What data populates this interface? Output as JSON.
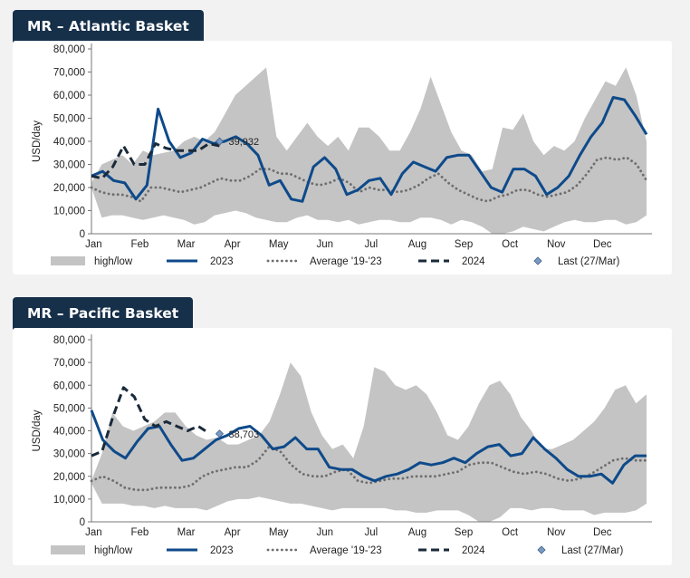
{
  "chart_data": [
    {
      "type": "line",
      "title": "MR – Atlantic Basket",
      "ylabel": "USD/day",
      "xlabel": "",
      "ylim": [
        0,
        80000
      ],
      "yticks": [
        0,
        10000,
        20000,
        30000,
        40000,
        50000,
        60000,
        70000,
        80000
      ],
      "ytick_labels": [
        "0",
        "10,000",
        "20,000",
        "30,000",
        "40,000",
        "50,000",
        "60,000",
        "70,000",
        "80,000"
      ],
      "months": [
        "Jan",
        "Feb",
        "Mar",
        "Apr",
        "May",
        "Jun",
        "Jul",
        "Aug",
        "Sep",
        "Oct",
        "Nov",
        "Dec"
      ],
      "x_unit": "week of year",
      "legend_position": "bottom",
      "legend": {
        "band": "high/low",
        "s2023": "2023",
        "avg": "Average '19-'23",
        "s2024": "2024",
        "last": "Last (27/Mar)"
      },
      "colors": {
        "band": "#c4c4c4",
        "s2023": "#0e4a8a",
        "avg": "#6e6e6e",
        "s2024": "#1a2a3a",
        "last": "#7a9cc4"
      },
      "band_high": [
        22000,
        30000,
        32000,
        34000,
        30000,
        36000,
        34000,
        35000,
        36000,
        40000,
        42000,
        40000,
        44000,
        52000,
        60000,
        64000,
        68000,
        72000,
        42000,
        36000,
        42000,
        48000,
        42000,
        38000,
        42000,
        36000,
        46000,
        46000,
        42000,
        36000,
        36000,
        44000,
        54000,
        68000,
        56000,
        44000,
        36000,
        34000,
        27000,
        28000,
        46000,
        45000,
        52000,
        40000,
        34000,
        38000,
        36000,
        40000,
        50000,
        58000,
        66000,
        64000,
        72000,
        60000,
        40000
      ],
      "band_low": [
        20000,
        7000,
        8000,
        8000,
        7000,
        6000,
        7000,
        8000,
        7000,
        6000,
        4000,
        5000,
        8000,
        9000,
        10000,
        9000,
        7000,
        6000,
        5000,
        5000,
        7000,
        8000,
        6000,
        6000,
        5000,
        6000,
        4000,
        5000,
        6000,
        6000,
        5000,
        5000,
        7000,
        7000,
        6000,
        4000,
        6000,
        5000,
        3000,
        0,
        0,
        1000,
        3000,
        2000,
        1000,
        3000,
        5000,
        6000,
        5000,
        5000,
        6000,
        6000,
        4000,
        5000,
        8000
      ],
      "series_2023": [
        25000,
        27000,
        23000,
        22000,
        15000,
        21000,
        54000,
        40000,
        33000,
        35000,
        41000,
        39000,
        40000,
        42000,
        39000,
        34000,
        21000,
        23000,
        15000,
        14000,
        29000,
        33000,
        28000,
        17000,
        19000,
        23000,
        24000,
        17000,
        26000,
        31000,
        29000,
        27000,
        33000,
        34000,
        34000,
        27000,
        20000,
        18000,
        28000,
        28000,
        25000,
        17000,
        20000,
        25000,
        34000,
        42000,
        48000,
        59000,
        58000,
        51000,
        43000
      ],
      "series_2024": [
        25000,
        24000,
        29000,
        38000,
        30000,
        30000,
        39000,
        37000,
        36000,
        36000,
        36000,
        39000,
        38000
      ],
      "last_value": 39932,
      "last_label": "39,932",
      "last_week": 12,
      "average": [
        20000,
        18000,
        17000,
        17000,
        16000,
        14000,
        20000,
        20000,
        19000,
        18000,
        19000,
        20000,
        22000,
        24000,
        23000,
        23000,
        25000,
        28000,
        28000,
        26000,
        26000,
        24000,
        22000,
        21000,
        22000,
        24000,
        22000,
        18000,
        20000,
        19000,
        19000,
        18000,
        19000,
        21000,
        24000,
        26000,
        22000,
        19000,
        17000,
        15000,
        14000,
        16000,
        17000,
        19000,
        19000,
        17000,
        16000,
        17000,
        18000,
        21000,
        26000,
        32000,
        33000,
        32000,
        33000,
        30000,
        23000
      ]
    },
    {
      "type": "line",
      "title": "MR – Pacific Basket",
      "ylabel": "USD/day",
      "xlabel": "",
      "ylim": [
        0,
        80000
      ],
      "yticks": [
        0,
        10000,
        20000,
        30000,
        40000,
        50000,
        60000,
        70000,
        80000
      ],
      "ytick_labels": [
        "0",
        "10,000",
        "20,000",
        "30,000",
        "40,000",
        "50,000",
        "60,000",
        "70,000",
        "80,000"
      ],
      "months": [
        "Jan",
        "Feb",
        "Mar",
        "Apr",
        "May",
        "Jun",
        "Jul",
        "Aug",
        "Sep",
        "Oct",
        "Nov",
        "Dec"
      ],
      "x_unit": "week of year",
      "legend_position": "bottom",
      "legend": {
        "band": "high/low",
        "s2023": "2023",
        "avg": "Average '19-'23",
        "s2024": "2024",
        "last": "Last (27/Mar)"
      },
      "colors": {
        "band": "#c4c4c4",
        "s2023": "#0e4a8a",
        "avg": "#6e6e6e",
        "s2024": "#1a2a3a",
        "last": "#7a9cc4"
      },
      "band_high": [
        18000,
        30000,
        48000,
        42000,
        40000,
        42000,
        44000,
        48000,
        48000,
        42000,
        38000,
        36000,
        37000,
        34000,
        34000,
        36000,
        38000,
        44000,
        56000,
        70000,
        64000,
        48000,
        38000,
        32000,
        34000,
        28000,
        42000,
        68000,
        66000,
        60000,
        58000,
        60000,
        56000,
        48000,
        38000,
        36000,
        42000,
        52000,
        60000,
        62000,
        56000,
        46000,
        40000,
        32000,
        32000,
        34000,
        36000,
        40000,
        44000,
        50000,
        58000,
        60000,
        52000,
        56000
      ],
      "band_low": [
        17000,
        8000,
        8000,
        8000,
        7000,
        7000,
        6000,
        7000,
        6000,
        6000,
        6000,
        5000,
        7000,
        9000,
        10000,
        10000,
        11000,
        10000,
        9000,
        8000,
        8000,
        7000,
        6000,
        5000,
        6000,
        6000,
        6000,
        6000,
        6000,
        5000,
        5000,
        4000,
        4000,
        5000,
        5000,
        5000,
        3000,
        0,
        0,
        2000,
        6000,
        6000,
        5000,
        6000,
        6000,
        5000,
        5000,
        5000,
        3000,
        4000,
        4000,
        4000,
        5000,
        8000
      ],
      "series_2023": [
        49000,
        36000,
        31000,
        28000,
        35000,
        41000,
        42000,
        34000,
        27000,
        28000,
        32000,
        36000,
        38000,
        41000,
        42000,
        38000,
        32000,
        33000,
        37000,
        32000,
        32000,
        24000,
        23000,
        23000,
        20000,
        18000,
        20000,
        21000,
        23000,
        26000,
        25000,
        26000,
        28000,
        26000,
        30000,
        33000,
        34000,
        29000,
        30000,
        37000,
        32000,
        28000,
        23000,
        20000,
        20000,
        21000,
        17000,
        25000,
        29000,
        29000
      ],
      "series_2024": [
        29000,
        31000,
        46000,
        59000,
        55000,
        45000,
        42000,
        44000,
        42000,
        40000,
        42000,
        39000
      ],
      "last_value": 38703,
      "last_label": "38,703",
      "last_week": 12,
      "average": [
        18000,
        20000,
        18000,
        15000,
        14000,
        14000,
        15000,
        15000,
        15000,
        16000,
        20000,
        22000,
        23000,
        24000,
        24000,
        27000,
        33000,
        31000,
        25000,
        21000,
        20000,
        20000,
        22000,
        23000,
        18000,
        17000,
        18000,
        19000,
        19000,
        20000,
        20000,
        20000,
        21000,
        22000,
        25000,
        26000,
        26000,
        24000,
        22000,
        21000,
        22000,
        21000,
        19000,
        18000,
        19000,
        21000,
        24000,
        27000,
        28000,
        27000,
        27000
      ]
    }
  ]
}
